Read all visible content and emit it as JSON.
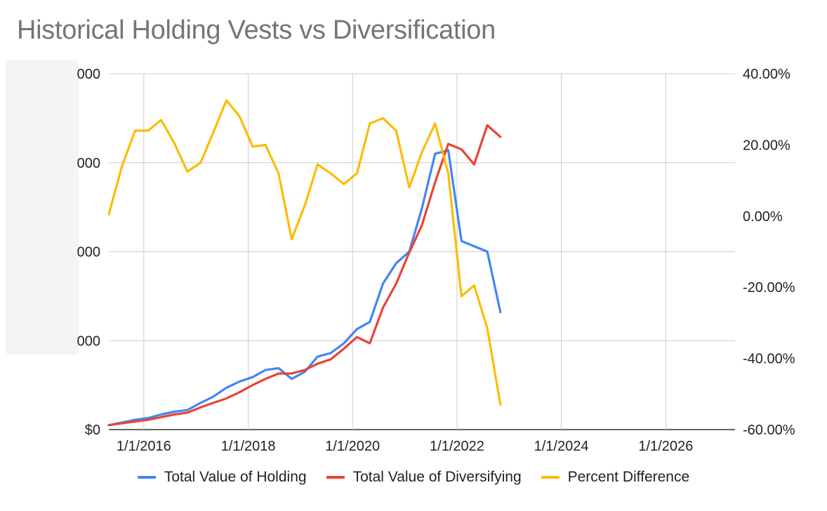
{
  "chart_data": {
    "type": "line",
    "title": "Historical Holding Vests vs Diversification",
    "x_ticks": [
      "1/1/2016",
      "1/1/2018",
      "1/1/2020",
      "1/1/2022",
      "1/1/2024",
      "1/1/2026"
    ],
    "x_range": [
      "2015-05-01",
      "2027-05-01"
    ],
    "y_left_ticks": [
      "$0",
      "000",
      "000",
      "000",
      "000"
    ],
    "y_left_range": [
      0,
      4
    ],
    "y_right_ticks": [
      "-60.00%",
      "-40.00%",
      "-20.00%",
      "0.00%",
      "20.00%",
      "40.00%"
    ],
    "y_right_range": [
      -60,
      40
    ],
    "grid": true,
    "legend_position": "bottom",
    "x": [
      "2015-05-01",
      "2015-08-01",
      "2015-11-01",
      "2016-02-01",
      "2016-05-01",
      "2016-08-01",
      "2016-11-01",
      "2017-02-01",
      "2017-05-01",
      "2017-08-01",
      "2017-11-01",
      "2018-02-01",
      "2018-05-01",
      "2018-08-01",
      "2018-11-01",
      "2019-02-01",
      "2019-05-01",
      "2019-08-01",
      "2019-11-01",
      "2020-02-01",
      "2020-05-01",
      "2020-08-01",
      "2020-11-01",
      "2021-02-01",
      "2021-05-01",
      "2021-08-01",
      "2021-11-01",
      "2022-02-01",
      "2022-05-01",
      "2022-08-01",
      "2022-11-01"
    ],
    "series": [
      {
        "name": "Total Value of Holding",
        "axis": "left",
        "color": "#4285f4",
        "values": [
          0.05,
          0.08,
          0.11,
          0.13,
          0.17,
          0.2,
          0.22,
          0.3,
          0.37,
          0.47,
          0.54,
          0.59,
          0.67,
          0.69,
          0.57,
          0.65,
          0.82,
          0.86,
          0.97,
          1.13,
          1.21,
          1.64,
          1.87,
          2.0,
          2.49,
          3.1,
          3.14,
          2.12,
          2.06,
          2.0,
          1.32
        ]
      },
      {
        "name": "Total Value of Diversifying",
        "axis": "left",
        "color": "#ea4335",
        "values": [
          0.05,
          0.07,
          0.09,
          0.11,
          0.14,
          0.17,
          0.19,
          0.25,
          0.3,
          0.35,
          0.42,
          0.5,
          0.57,
          0.63,
          0.63,
          0.67,
          0.74,
          0.79,
          0.91,
          1.04,
          0.97,
          1.37,
          1.64,
          1.99,
          2.3,
          2.78,
          3.21,
          3.15,
          2.98,
          3.42,
          3.29
        ]
      },
      {
        "name": "Percent Difference",
        "axis": "right",
        "color": "#fbbc04",
        "values": [
          0.5,
          14,
          24,
          24,
          27,
          20.5,
          12.5,
          15,
          23.5,
          32.5,
          28,
          19.5,
          20,
          12,
          -6.5,
          3,
          14.5,
          12,
          9,
          12,
          26,
          27.5,
          24,
          8,
          18,
          26,
          12,
          -22.5,
          -19.5,
          -31.5,
          -53
        ]
      }
    ]
  },
  "legend": [
    {
      "label": "Total Value of Holding",
      "color": "#4285f4"
    },
    {
      "label": "Total Value of Diversifying",
      "color": "#ea4335"
    },
    {
      "label": "Percent Difference",
      "color": "#fbbc04"
    }
  ]
}
